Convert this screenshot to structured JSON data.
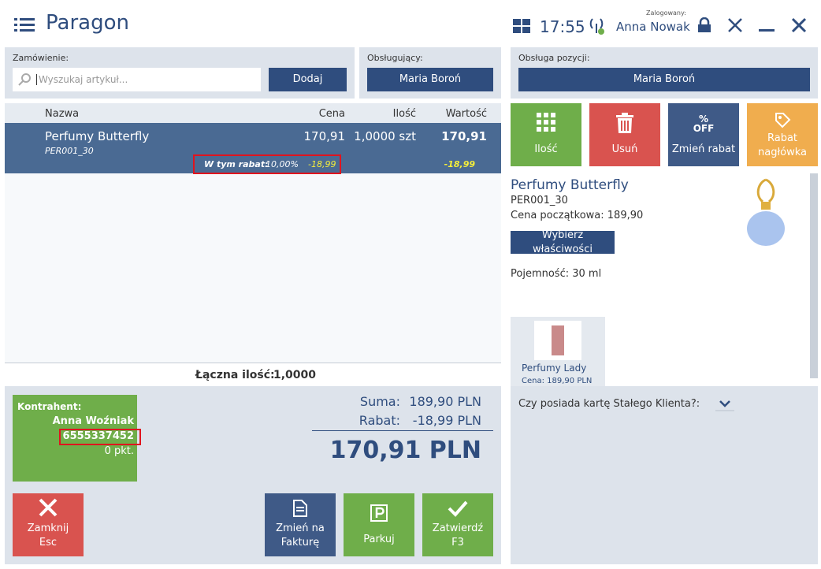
{
  "header": {
    "title": "Paragon",
    "time": "17:55",
    "logged_label": "Zalogowany:",
    "user": "Anna Nowak"
  },
  "order": {
    "label": "Zamówienie:",
    "search_placeholder": "Wyszukaj artykuł...",
    "add_button": "Dodaj"
  },
  "cashier": {
    "label": "Obsługujący:",
    "name": "Maria Boroń"
  },
  "table": {
    "columns": [
      "Nazwa",
      "Cena",
      "Ilość",
      "Wartość"
    ],
    "rows": [
      {
        "name": "Perfumy Butterfly",
        "code": "PER001_30",
        "price": "170,91",
        "quantity": "1,0000 szt",
        "value": "170,91",
        "discount_label": "W tym rabat:",
        "discount_percent": "10,00%",
        "discount_amount": "-18,99",
        "discount_value": "-18,99"
      }
    ],
    "total_quantity_label": "Łączna ilość:",
    "total_quantity": "1,0000"
  },
  "customer": {
    "label": "Kontrahent:",
    "name": "Anna Woźniak",
    "number": "6555337452",
    "points": "0 pkt."
  },
  "summary": {
    "sum_label": "Suma:",
    "sum": "189,90 PLN",
    "discount_label": "Rabat:",
    "discount": "-18,99 PLN",
    "total": "170,91 PLN"
  },
  "bottom_buttons": {
    "close": [
      "Zamknij",
      "Esc"
    ],
    "invoice": [
      "Zmień na",
      "Fakturę"
    ],
    "park": "Parkuj",
    "confirm": [
      "Zatwierdź",
      "F3"
    ]
  },
  "position": {
    "label": "Obsługa pozycji:",
    "name": "Maria Boroń"
  },
  "action_buttons": {
    "quantity": "Ilość",
    "delete": "Usuń",
    "discount_icon": [
      "%",
      "OFF"
    ],
    "discount": "Zmień rabat",
    "header_discount": [
      "Rabat",
      "nagłówka"
    ]
  },
  "details": {
    "name": "Perfumy Butterfly",
    "code": "PER001_30",
    "initial_price": "Cena początkowa: 189,90",
    "properties_button": "Wybierz właściwości",
    "capacity": "Pojemność: 30 ml",
    "related": [
      {
        "name": "Perfumy Lady",
        "price": "Cena: 189,90 PLN"
      }
    ],
    "loyalty_question": "Czy posiada kartę Stałego Klienta?:"
  }
}
